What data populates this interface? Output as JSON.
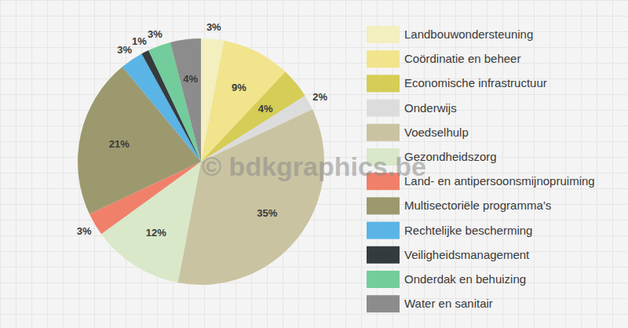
{
  "chart_data": {
    "type": "pie",
    "categories": [
      "Landbouwondersteuning",
      "Coördinatie en beheer",
      "Economische infrastructuur",
      "Onderwijs",
      "Voedselhulp",
      "Gezondheidszorg",
      "Land- en antipersoonsmijnopruiming",
      "Multisectoriële programma’s",
      "Rechtelijke bescherming",
      "Veiligheidsmanagement",
      "Onderdak en behuizing",
      "Water en sanitair"
    ],
    "values": [
      3,
      9,
      4,
      2,
      35,
      12,
      3,
      21,
      3,
      1,
      3,
      4
    ],
    "value_labels": [
      "3%",
      "9%",
      "4%",
      "2%",
      "35%",
      "12%",
      "3%",
      "21%",
      "3%",
      "1%",
      "3%",
      "4%"
    ],
    "colors": [
      "#f3efbe",
      "#f1e48c",
      "#d5cd55",
      "#dcdcdc",
      "#c9c3a1",
      "#d9e8c9",
      "#f0806a",
      "#9d996e",
      "#5bb4e6",
      "#343b3f",
      "#73cc9b",
      "#8c8c8c"
    ],
    "data_labels": true,
    "legend": "right",
    "annotations": [
      "© bdkgraphics.be"
    ]
  }
}
